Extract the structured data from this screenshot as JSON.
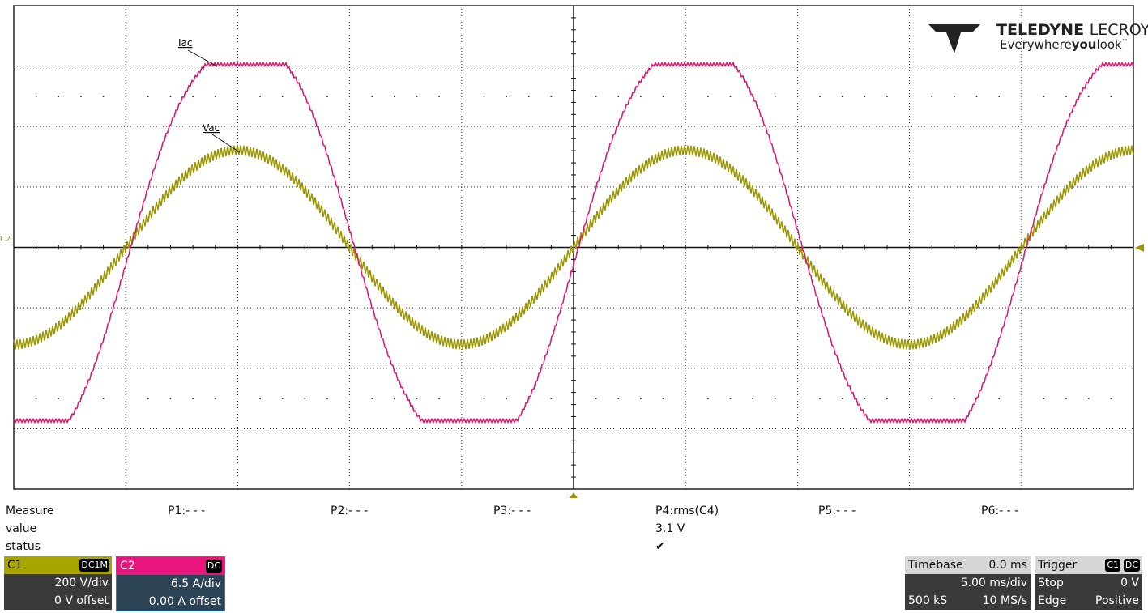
{
  "traces": {
    "iac_label": "Iac",
    "vac_label": "Vac",
    "c2_marker": "C2"
  },
  "logo": {
    "brand": "TELEDYNE",
    "brand2": "LECROY",
    "tag1": "Everywhere",
    "tag2": "you",
    "tag3": "look",
    "tm": "™"
  },
  "measure": {
    "header": [
      "Measure",
      "P1:- - -",
      "P2:- - -",
      "P3:- - -",
      "P4:rms(C4)",
      "P5:- - -",
      "P6:- - -"
    ],
    "value_label": "value",
    "value": "3.1 V",
    "status_label": "status",
    "status": "✔"
  },
  "channels": [
    {
      "name": "C1",
      "coupling": "DC1M",
      "scale": "200 V/div",
      "offset": "0 V offset"
    },
    {
      "name": "C2",
      "coupling": "DC",
      "scale": "6.5 A/div",
      "offset": "0.00 A offset"
    }
  ],
  "timebase": {
    "title": "Timebase",
    "delay": "0.0 ms",
    "scale": "5.00 ms/div",
    "samples": "500 kS",
    "rate": "10 MS/s"
  },
  "trigger": {
    "title": "Trigger",
    "source": "C1",
    "coupling": "DC",
    "mode": "Stop",
    "level": "0 V",
    "type": "Edge",
    "slope": "Positive"
  }
}
